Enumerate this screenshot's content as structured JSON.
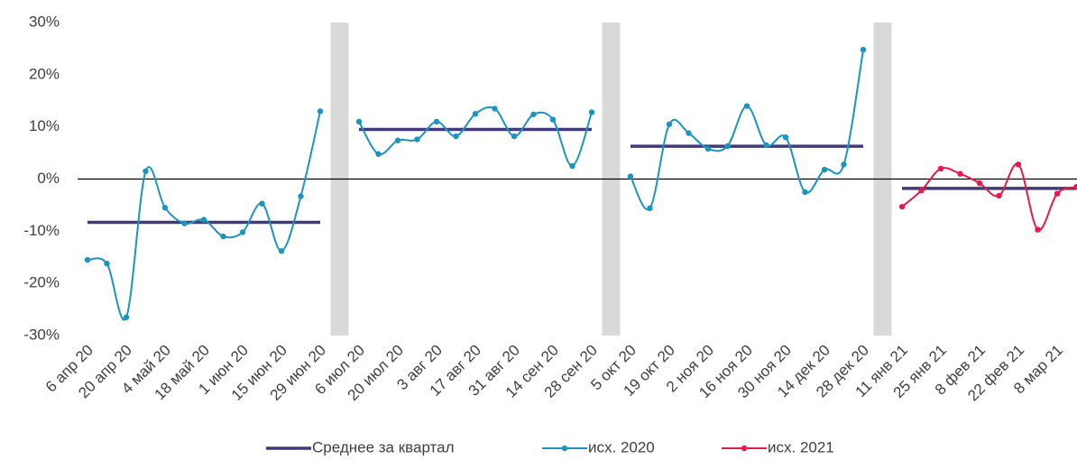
{
  "chart_data": {
    "type": "line",
    "categories": [
      "6 апр 20",
      null,
      "20 апр 20",
      null,
      "4 май 20",
      null,
      "18 май 20",
      null,
      "1 июн 20",
      null,
      "15 июн 20",
      null,
      "29 июн 20",
      null,
      "6 июл 20",
      null,
      "20 июл 20",
      null,
      "3 авг 20",
      null,
      "17 авг 20",
      null,
      "31 авг 20",
      null,
      "14 сен 20",
      null,
      "28 сен 20",
      null,
      "5 окт 20",
      null,
      "19 окт 20",
      null,
      "2 ноя 20",
      null,
      "16 ноя 20",
      null,
      "30 ноя 20",
      null,
      "14 дек 20",
      null,
      "28 дек 20",
      null,
      "11 янв 21",
      null,
      "25 янв 21",
      null,
      "8 фев 21",
      null,
      "22 фев 21",
      null,
      "8 мар 21",
      null
    ],
    "series": [
      {
        "name": "Среднее за квартал",
        "color": "#403a7a",
        "smooth": false,
        "markers": false,
        "values": [
          -8.3,
          -8.3,
          -8.3,
          -8.3,
          -8.3,
          -8.3,
          -8.3,
          -8.3,
          -8.3,
          -8.3,
          -8.3,
          -8.3,
          -8.3,
          null,
          9.5,
          9.5,
          9.5,
          9.5,
          9.5,
          9.5,
          9.5,
          9.5,
          9.5,
          9.5,
          9.5,
          9.5,
          9.5,
          null,
          6.3,
          6.3,
          6.3,
          6.3,
          6.3,
          6.3,
          6.3,
          6.3,
          6.3,
          6.3,
          6.3,
          6.3,
          6.3,
          null,
          -1.8,
          -1.8,
          -1.8,
          -1.8,
          -1.8,
          -1.8,
          -1.8,
          -1.8,
          -1.8,
          -1.8
        ]
      },
      {
        "name": "исх. 2020",
        "color": "#1b94c0",
        "smooth": true,
        "markers": true,
        "values": [
          -15.5,
          -16.2,
          -26.5,
          1.5,
          -5.5,
          -8.5,
          -7.8,
          -11,
          -10.2,
          -4.7,
          -13.8,
          -3.3,
          13,
          null,
          11,
          4.8,
          7.4,
          7.6,
          11,
          8.2,
          12.5,
          13.5,
          8.2,
          12.4,
          11.4,
          2.5,
          12.8,
          null,
          0.5,
          -5.6,
          10.5,
          8.8,
          5.8,
          6.3,
          14,
          6.5,
          8,
          -2.5,
          1.8,
          2.8,
          24.8,
          null,
          null,
          null,
          null,
          null,
          null,
          null,
          null,
          null,
          null,
          null
        ]
      },
      {
        "name": "исх. 2021",
        "color": "#e8194b",
        "smooth": true,
        "markers": true,
        "values": [
          null,
          null,
          null,
          null,
          null,
          null,
          null,
          null,
          null,
          null,
          null,
          null,
          null,
          null,
          null,
          null,
          null,
          null,
          null,
          null,
          null,
          null,
          null,
          null,
          null,
          null,
          null,
          null,
          null,
          null,
          null,
          null,
          null,
          null,
          null,
          null,
          null,
          null,
          null,
          null,
          null,
          null,
          -5.3,
          -2.2,
          2,
          1,
          -0.8,
          -3.2,
          2.8,
          -9.7,
          -2.8,
          -1.5
        ]
      }
    ],
    "ylim": [
      -30,
      30
    ],
    "yticks": [
      {
        "value": -30,
        "label": "-30%"
      },
      {
        "value": -20,
        "label": "-20%"
      },
      {
        "value": -10,
        "label": "-10%"
      },
      {
        "value": 0,
        "label": "0%"
      },
      {
        "value": 10,
        "label": "10%"
      },
      {
        "value": 20,
        "label": "20%"
      },
      {
        "value": 30,
        "label": "30%"
      }
    ],
    "legend": "bottom"
  }
}
